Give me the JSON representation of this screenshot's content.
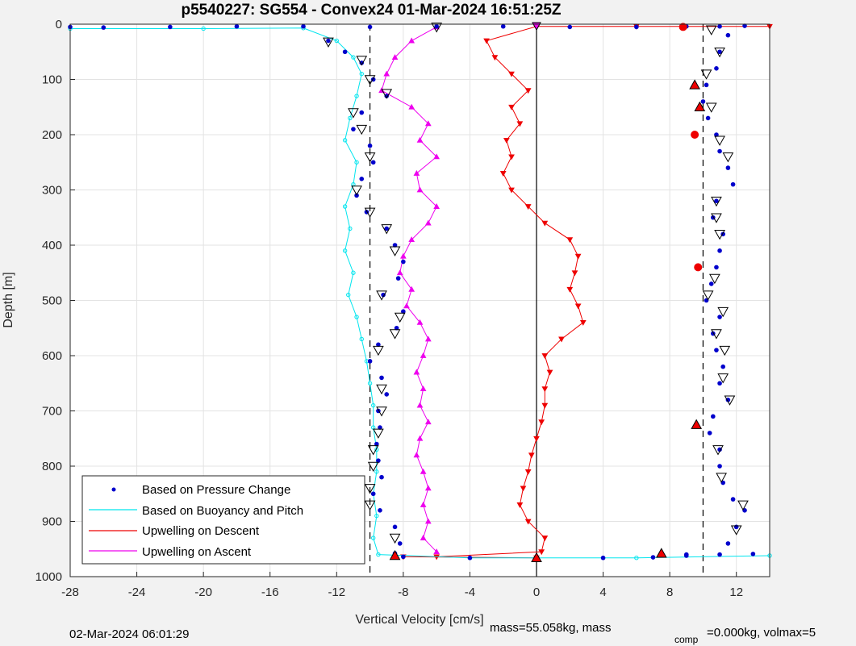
{
  "chart_data": {
    "type": "scatter",
    "title": "p5540227: SG554 - Convex24 01-Mar-2024 16:51:25Z",
    "xlabel": "Vertical Velocity [cm/s]",
    "ylabel": "Depth [m]",
    "xlim": [
      -28,
      14
    ],
    "ylim": [
      0,
      1000
    ],
    "y_reversed": true,
    "xticks": [
      -28,
      -24,
      -20,
      -16,
      -12,
      -8,
      -4,
      0,
      4,
      8,
      12
    ],
    "yticks": [
      0,
      100,
      200,
      300,
      400,
      500,
      600,
      700,
      800,
      900,
      1000
    ],
    "grid": true,
    "legend_position": "bottom-left",
    "reference_lines": {
      "dashed_x": [
        -10,
        10
      ],
      "solid_x": [
        0
      ]
    },
    "series": [
      {
        "name": "Based on Pressure Change",
        "color": "#0000cc",
        "marker": "dot",
        "descent": [
          [
            -12.5,
            30
          ],
          [
            -11.5,
            50
          ],
          [
            -10.5,
            70
          ],
          [
            -9.8,
            100
          ],
          [
            -9.0,
            130
          ],
          [
            -10.5,
            160
          ],
          [
            -11.0,
            190
          ],
          [
            -10.0,
            220
          ],
          [
            -9.8,
            250
          ],
          [
            -10.5,
            280
          ],
          [
            -10.8,
            310
          ],
          [
            -10.2,
            340
          ],
          [
            -9.0,
            370
          ],
          [
            -8.5,
            400
          ],
          [
            -8.0,
            430
          ],
          [
            -8.3,
            460
          ],
          [
            -9.2,
            490
          ],
          [
            -8.0,
            520
          ],
          [
            -8.4,
            550
          ],
          [
            -9.5,
            580
          ],
          [
            -10.0,
            610
          ],
          [
            -9.3,
            640
          ],
          [
            -9.0,
            670
          ],
          [
            -9.5,
            700
          ],
          [
            -9.4,
            730
          ],
          [
            -9.6,
            760
          ],
          [
            -9.5,
            790
          ],
          [
            -9.3,
            820
          ],
          [
            -9.8,
            850
          ],
          [
            -9.4,
            880
          ],
          [
            -8.5,
            910
          ],
          [
            -8.2,
            940
          ],
          [
            -8.5,
            958
          ]
        ],
        "ascent": [
          [
            11.5,
            20
          ],
          [
            11.0,
            50
          ],
          [
            10.8,
            80
          ],
          [
            10.2,
            110
          ],
          [
            10.0,
            140
          ],
          [
            10.3,
            170
          ],
          [
            10.8,
            200
          ],
          [
            11.0,
            230
          ],
          [
            11.5,
            260
          ],
          [
            11.8,
            290
          ],
          [
            10.8,
            320
          ],
          [
            10.6,
            350
          ],
          [
            11.2,
            380
          ],
          [
            11.0,
            410
          ],
          [
            10.8,
            440
          ],
          [
            10.5,
            470
          ],
          [
            10.2,
            500
          ],
          [
            11.0,
            530
          ],
          [
            10.6,
            560
          ],
          [
            10.8,
            590
          ],
          [
            11.2,
            620
          ],
          [
            11.0,
            650
          ],
          [
            11.5,
            680
          ],
          [
            10.6,
            710
          ],
          [
            10.4,
            740
          ],
          [
            11.0,
            770
          ],
          [
            11.0,
            800
          ],
          [
            11.2,
            830
          ],
          [
            11.8,
            860
          ],
          [
            12.5,
            880
          ],
          [
            12.0,
            910
          ],
          [
            11.5,
            940
          ],
          [
            9.0,
            960
          ]
        ],
        "surface": [
          [
            -28,
            5
          ],
          [
            -26,
            6
          ],
          [
            -22,
            5
          ],
          [
            -18,
            4
          ],
          [
            -14,
            4
          ],
          [
            -10,
            5
          ],
          [
            -6,
            4
          ],
          [
            -2,
            4
          ],
          [
            2,
            5
          ],
          [
            6,
            5
          ],
          [
            9,
            4
          ],
          [
            11,
            4
          ],
          [
            12.5,
            3
          ]
        ],
        "bottom": [
          [
            -8,
            964
          ],
          [
            -4,
            966
          ],
          [
            0,
            966
          ],
          [
            4,
            966
          ],
          [
            7,
            965
          ],
          [
            9,
            962
          ],
          [
            11,
            960
          ],
          [
            13,
            959
          ]
        ]
      },
      {
        "name": "Based on Buoyancy and Pitch",
        "color": "#00e5ee",
        "marker": "circle-line",
        "values": [
          [
            -28,
            8
          ],
          [
            -20,
            8
          ],
          [
            -14,
            7
          ],
          [
            -12,
            30
          ],
          [
            -11.0,
            60
          ],
          [
            -10.5,
            90
          ],
          [
            -10.8,
            130
          ],
          [
            -11.2,
            170
          ],
          [
            -11.5,
            210
          ],
          [
            -10.8,
            250
          ],
          [
            -11.0,
            290
          ],
          [
            -11.5,
            330
          ],
          [
            -11.2,
            370
          ],
          [
            -11.5,
            410
          ],
          [
            -11.0,
            450
          ],
          [
            -11.3,
            490
          ],
          [
            -10.8,
            530
          ],
          [
            -10.5,
            570
          ],
          [
            -10.2,
            610
          ],
          [
            -10.0,
            650
          ],
          [
            -9.8,
            690
          ],
          [
            -9.8,
            730
          ],
          [
            -9.6,
            770
          ],
          [
            -9.6,
            810
          ],
          [
            -9.8,
            850
          ],
          [
            -9.6,
            890
          ],
          [
            -9.8,
            930
          ],
          [
            -9.5,
            960
          ],
          [
            -4,
            966
          ],
          [
            0,
            966
          ],
          [
            6,
            966
          ],
          [
            14,
            962
          ]
        ]
      },
      {
        "name": "Upwelling on Descent",
        "color": "#ee0000",
        "marker": "triangle-down-line",
        "values": [
          [
            14,
            4
          ],
          [
            6,
            4
          ],
          [
            0,
            4
          ],
          [
            -3,
            30
          ],
          [
            -2.5,
            60
          ],
          [
            -1.5,
            90
          ],
          [
            -0.5,
            120
          ],
          [
            -1.5,
            150
          ],
          [
            -1.0,
            180
          ],
          [
            -1.8,
            210
          ],
          [
            -1.5,
            240
          ],
          [
            -2.0,
            270
          ],
          [
            -1.5,
            300
          ],
          [
            -0.5,
            330
          ],
          [
            0.5,
            360
          ],
          [
            2.0,
            390
          ],
          [
            2.5,
            420
          ],
          [
            2.3,
            450
          ],
          [
            2.0,
            480
          ],
          [
            2.5,
            510
          ],
          [
            2.8,
            540
          ],
          [
            1.5,
            570
          ],
          [
            0.5,
            600
          ],
          [
            0.8,
            630
          ],
          [
            0.5,
            660
          ],
          [
            0.5,
            690
          ],
          [
            0.3,
            720
          ],
          [
            0.0,
            750
          ],
          [
            -0.3,
            780
          ],
          [
            -0.5,
            810
          ],
          [
            -0.8,
            840
          ],
          [
            -1.0,
            870
          ],
          [
            -0.5,
            900
          ],
          [
            0.5,
            930
          ],
          [
            0.3,
            955
          ],
          [
            -6,
            964
          ],
          [
            -8,
            964
          ],
          [
            0,
            966
          ]
        ]
      },
      {
        "name": "Upwelling on Ascent",
        "color": "#ee00ee",
        "marker": "triangle-up-line",
        "values": [
          [
            -6,
            5
          ],
          [
            -7.5,
            30
          ],
          [
            -8.5,
            60
          ],
          [
            -9.0,
            90
          ],
          [
            -9.3,
            120
          ],
          [
            -7.5,
            150
          ],
          [
            -6.5,
            180
          ],
          [
            -7.0,
            210
          ],
          [
            -6.0,
            240
          ],
          [
            -7.2,
            270
          ],
          [
            -7.0,
            300
          ],
          [
            -6.0,
            330
          ],
          [
            -6.5,
            360
          ],
          [
            -7.5,
            390
          ],
          [
            -8.0,
            420
          ],
          [
            -8.2,
            450
          ],
          [
            -7.5,
            480
          ],
          [
            -7.8,
            510
          ],
          [
            -7.0,
            540
          ],
          [
            -6.5,
            570
          ],
          [
            -6.8,
            600
          ],
          [
            -7.2,
            630
          ],
          [
            -6.8,
            660
          ],
          [
            -7.0,
            690
          ],
          [
            -6.5,
            720
          ],
          [
            -7.0,
            750
          ],
          [
            -7.2,
            780
          ],
          [
            -6.8,
            810
          ],
          [
            -6.5,
            840
          ],
          [
            -6.8,
            870
          ],
          [
            -6.5,
            900
          ],
          [
            -6.8,
            930
          ],
          [
            -6.0,
            955
          ]
        ]
      }
    ],
    "markers": {
      "open_triangles": [
        [
          -12.5,
          32
        ],
        [
          -10.5,
          65
        ],
        [
          -10,
          100
        ],
        [
          -9,
          125
        ],
        [
          -11,
          160
        ],
        [
          -10.5,
          190
        ],
        [
          -10,
          240
        ],
        [
          -10.8,
          300
        ],
        [
          -10,
          340
        ],
        [
          -9,
          370
        ],
        [
          -8.5,
          410
        ],
        [
          -9.3,
          490
        ],
        [
          -8.2,
          530
        ],
        [
          -8.5,
          560
        ],
        [
          -9.5,
          590
        ],
        [
          -9.3,
          660
        ],
        [
          -9.3,
          700
        ],
        [
          -9.5,
          740
        ],
        [
          -9.8,
          770
        ],
        [
          -9.8,
          800
        ],
        [
          -10,
          840
        ],
        [
          -10,
          870
        ],
        [
          -8.5,
          930
        ],
        [
          -6,
          5
        ],
        [
          10.5,
          10
        ],
        [
          11,
          50
        ],
        [
          10.2,
          90
        ],
        [
          10.5,
          150
        ],
        [
          11,
          210
        ],
        [
          11.5,
          240
        ],
        [
          10.8,
          320
        ],
        [
          10.8,
          350
        ],
        [
          11.0,
          380
        ],
        [
          10.7,
          460
        ],
        [
          10.3,
          490
        ],
        [
          11.2,
          520
        ],
        [
          10.8,
          560
        ],
        [
          11.3,
          590
        ],
        [
          11.2,
          640
        ],
        [
          11.6,
          680
        ],
        [
          10.9,
          770
        ],
        [
          11.1,
          820
        ],
        [
          12.4,
          870
        ],
        [
          12.0,
          915
        ]
      ],
      "red_filled_triangles": [
        [
          9.5,
          110
        ],
        [
          9.8,
          150
        ],
        [
          9.6,
          725
        ],
        [
          7.5,
          958
        ],
        [
          0,
          966
        ],
        [
          -8.5,
          962
        ]
      ],
      "red_dots": [
        [
          8.8,
          5
        ],
        [
          9.5,
          200
        ],
        [
          9.7,
          440
        ]
      ],
      "magenta_open_triangle": [
        [
          0,
          3
        ]
      ]
    }
  },
  "footer": {
    "date_label": "02-Mar-2024 06:01:29",
    "mass_text": "mass=55.058kg, mass",
    "comp_subscript": "comp",
    "comp_rest": "=0.000kg, volmax=5"
  }
}
